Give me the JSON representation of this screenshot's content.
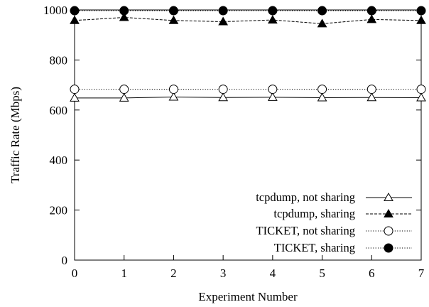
{
  "chart_data": {
    "type": "line",
    "title": "",
    "xlabel": "Experiment Number",
    "ylabel": "Traffic Rate (Mbps)",
    "x": [
      0,
      1,
      2,
      3,
      4,
      5,
      6,
      7
    ],
    "xlim": [
      0,
      7
    ],
    "ylim": [
      0,
      1000
    ],
    "xticks": [
      "0",
      "1",
      "2",
      "3",
      "4",
      "5",
      "6",
      "7"
    ],
    "yticks": [
      "0",
      "200",
      "400",
      "600",
      "800",
      "1000"
    ],
    "grid": false,
    "legend_position": "bottom-right",
    "series": [
      {
        "name": "tcpdump, not sharing",
        "values": [
          648,
          648,
          652,
          650,
          651,
          649,
          650,
          649
        ],
        "marker": "open-triangle",
        "line": "solid",
        "color": "#000000"
      },
      {
        "name": "tcpdump, sharing",
        "values": [
          958,
          970,
          958,
          953,
          960,
          945,
          962,
          958
        ],
        "marker": "filled-triangle",
        "line": "dashed",
        "color": "#000000"
      },
      {
        "name": "TICKET, not sharing",
        "values": [
          683,
          683,
          683,
          683,
          683,
          683,
          683,
          683
        ],
        "marker": "open-circle",
        "line": "dotted",
        "color": "#000000"
      },
      {
        "name": "TICKET, sharing",
        "values": [
          997,
          997,
          997,
          997,
          997,
          997,
          997,
          997
        ],
        "marker": "filled-circle",
        "line": "dotted",
        "color": "#000000"
      }
    ]
  }
}
